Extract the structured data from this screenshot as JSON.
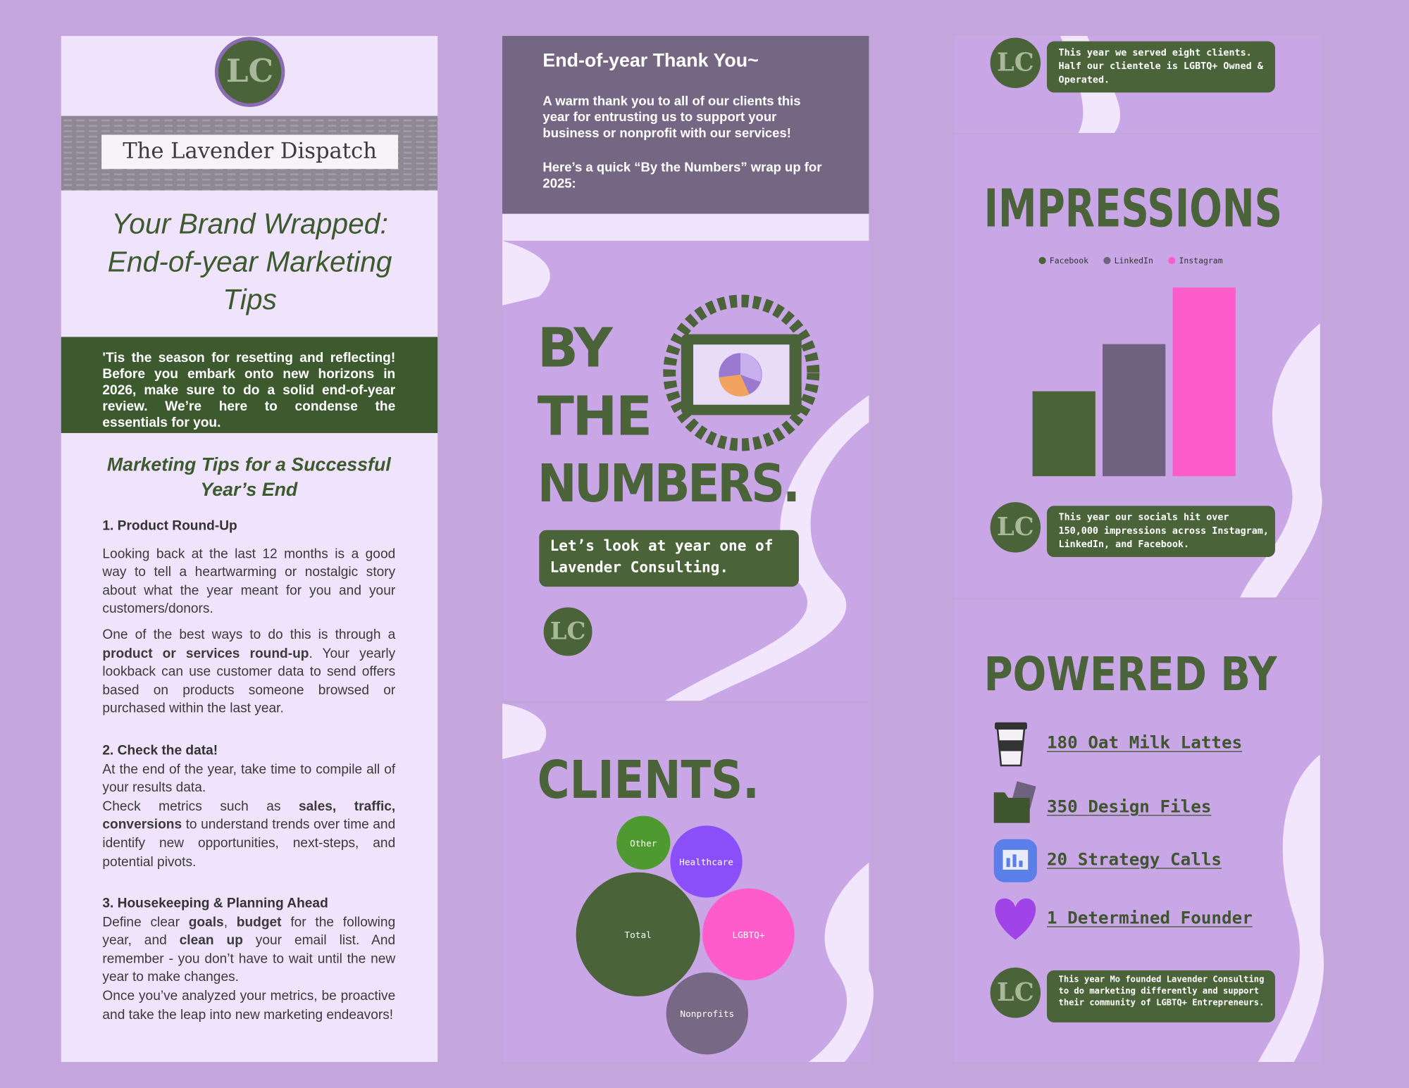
{
  "logo_text": "LC",
  "newsletter": {
    "masthead": "The Lavender Dispatch",
    "title": "Your Brand Wrapped: End-of-year Marketing Tips",
    "intro": "'Tis the season for resetting and reflecting! Before you embark onto new horizons in 2026, make sure to do a solid end-of-year review. We’re here to condense the essentials for you.",
    "subtitle": "Marketing Tips for a Successful Year’s End",
    "sections": [
      {
        "heading": "1. Product Round-Up",
        "paragraphs": [
          [
            {
              "text": "Looking back at the last 12 months is a good way to tell a heartwarming or nostalgic story about what the year meant for you and your customers/donors.",
              "bold": false
            }
          ],
          [
            {
              "text": "One of the best ways to do this is through a ",
              "bold": false
            },
            {
              "text": "product or services round-up",
              "bold": true
            },
            {
              "text": ". Your yearly lookback can use customer data to send offers based on products someone browsed or purchased within the last year.",
              "bold": false
            }
          ]
        ]
      },
      {
        "heading": "2. Check the data!",
        "paragraphs": [
          [
            {
              "text": "At the end of the year, take time to compile all of your results data.",
              "bold": false
            }
          ],
          [
            {
              "text": "Check metrics such as ",
              "bold": false
            },
            {
              "text": "sales, traffic, conversions",
              "bold": true
            },
            {
              "text": " to understand trends over time and identify new opportunities, next-steps, and potential pivots.",
              "bold": false
            }
          ]
        ]
      },
      {
        "heading": "3. Housekeeping & Planning Ahead",
        "paragraphs": [
          [
            {
              "text": "Define clear ",
              "bold": false
            },
            {
              "text": "goals",
              "bold": true
            },
            {
              "text": ", ",
              "bold": false
            },
            {
              "text": "budget",
              "bold": true
            },
            {
              "text": " for the following year, and ",
              "bold": false
            },
            {
              "text": "clean up",
              "bold": true
            },
            {
              "text": " your email list. And remember - you don’t have to wait until the new year to make changes.",
              "bold": false
            }
          ],
          [
            {
              "text": "Once you’ve analyzed your metrics, be proactive and take the leap into new marketing endeavors!",
              "bold": false
            }
          ]
        ]
      }
    ]
  },
  "thanks": {
    "title": "End-of-year Thank You~",
    "paragraphs": [
      "A warm thank you to all of our clients this year for entrusting us to support your business or nonprofit with our services!",
      "Here’s a quick “By the Numbers” wrap up for 2025:"
    ]
  },
  "by_the_numbers": {
    "title_lines": [
      "BY",
      "THE",
      "NUMBERS."
    ],
    "caption": "Let’s look at year one of Lavender Consulting."
  },
  "clients_chart": {
    "type": "bubble",
    "title": "CLIENTS.",
    "categories": [
      "Other",
      "Healthcare",
      "Total",
      "LGBTQ+",
      "Nonprofits"
    ],
    "values": [
      1.5,
      2.7,
      8,
      4.4,
      3.5
    ],
    "colors": [
      "#4f9a30",
      "#8b4ffa",
      "#4a6338",
      "#ff5ccb",
      "#776986"
    ]
  },
  "clients_note": "This year we served eight clients. Half our clientele is LGBTQ+ Owned & Operated.",
  "impressions_chart": {
    "type": "bar",
    "title": "IMPRESSIONS",
    "ylim": [
      0,
      100
    ],
    "series": [
      {
        "name": "Facebook",
        "color": "#4a6338",
        "values": [
          45
        ]
      },
      {
        "name": "LinkedIn",
        "color": "#6f6280",
        "values": [
          70
        ]
      },
      {
        "name": "Instagram",
        "color": "#ff5ccb",
        "values": [
          100
        ]
      }
    ]
  },
  "impressions_note": "This year our socials hit over 150,000 impressions across Instagram, LinkedIn, and Facebook.",
  "powered_by": {
    "title": "POWERED BY",
    "items": [
      "180 Oat Milk Lattes",
      "350 Design Files",
      "20 Strategy Calls",
      "1 Determined Founder"
    ]
  },
  "founder_note": "This year Mo founded Lavender Consulting to do marketing differently and support their community of LGBTQ+ Entrepreneurs."
}
